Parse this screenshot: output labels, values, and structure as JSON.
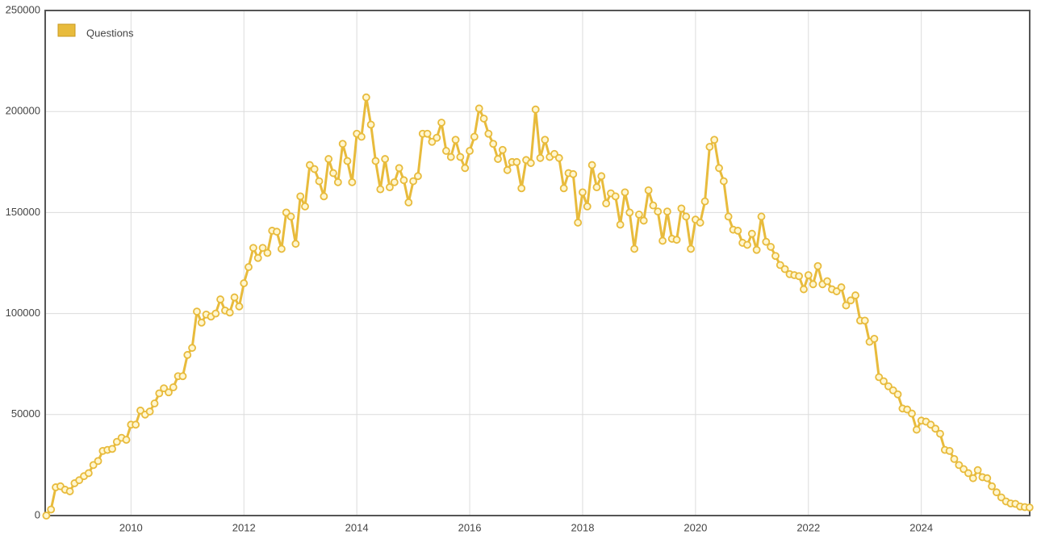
{
  "chart_data": {
    "type": "line",
    "x": [
      2008.5,
      2008.583,
      2008.667,
      2008.75,
      2008.833,
      2008.917,
      2009,
      2009.083,
      2009.167,
      2009.25,
      2009.333,
      2009.417,
      2009.5,
      2009.583,
      2009.667,
      2009.75,
      2009.833,
      2009.917,
      2010,
      2010.083,
      2010.167,
      2010.25,
      2010.333,
      2010.417,
      2010.5,
      2010.583,
      2010.667,
      2010.75,
      2010.833,
      2010.917,
      2011,
      2011.083,
      2011.167,
      2011.25,
      2011.333,
      2011.417,
      2011.5,
      2011.583,
      2011.667,
      2011.75,
      2011.833,
      2011.917,
      2012,
      2012.083,
      2012.167,
      2012.25,
      2012.333,
      2012.417,
      2012.5,
      2012.583,
      2012.667,
      2012.75,
      2012.833,
      2012.917,
      2013,
      2013.083,
      2013.167,
      2013.25,
      2013.333,
      2013.417,
      2013.5,
      2013.583,
      2013.667,
      2013.75,
      2013.833,
      2013.917,
      2014,
      2014.083,
      2014.167,
      2014.25,
      2014.333,
      2014.417,
      2014.5,
      2014.583,
      2014.667,
      2014.75,
      2014.833,
      2014.917,
      2015,
      2015.083,
      2015.167,
      2015.25,
      2015.333,
      2015.417,
      2015.5,
      2015.583,
      2015.667,
      2015.75,
      2015.833,
      2015.917,
      2016,
      2016.083,
      2016.167,
      2016.25,
      2016.333,
      2016.417,
      2016.5,
      2016.583,
      2016.667,
      2016.75,
      2016.833,
      2016.917,
      2017,
      2017.083,
      2017.167,
      2017.25,
      2017.333,
      2017.417,
      2017.5,
      2017.583,
      2017.667,
      2017.75,
      2017.833,
      2017.917,
      2018,
      2018.083,
      2018.167,
      2018.25,
      2018.333,
      2018.417,
      2018.5,
      2018.583,
      2018.667,
      2018.75,
      2018.833,
      2018.917,
      2019,
      2019.083,
      2019.167,
      2019.25,
      2019.333,
      2019.417,
      2019.5,
      2019.583,
      2019.667,
      2019.75,
      2019.833,
      2019.917,
      2020,
      2020.083,
      2020.167,
      2020.25,
      2020.333,
      2020.417,
      2020.5,
      2020.583,
      2020.667,
      2020.75,
      2020.833,
      2020.917,
      2021,
      2021.083,
      2021.167,
      2021.25,
      2021.333,
      2021.417,
      2021.5,
      2021.583,
      2021.667,
      2021.75,
      2021.833,
      2021.917,
      2022,
      2022.083,
      2022.167,
      2022.25,
      2022.333,
      2022.417,
      2022.5,
      2022.583,
      2022.667,
      2022.75,
      2022.833,
      2022.917,
      2023,
      2023.083,
      2023.167,
      2023.25,
      2023.333,
      2023.417,
      2023.5,
      2023.583,
      2023.667,
      2023.75,
      2023.833,
      2023.917,
      2024,
      2024.083,
      2024.167,
      2024.25,
      2024.333,
      2024.417,
      2024.5,
      2024.583,
      2024.667,
      2024.75,
      2024.833,
      2024.917,
      2025,
      2025.083,
      2025.167,
      2025.25,
      2025.333,
      2025.417,
      2025.5,
      2025.583,
      2025.667,
      2025.75,
      2025.833,
      2025.917
    ],
    "series": [
      {
        "name": "Questions",
        "color": "#e8bb3c",
        "values": [
          0,
          3000,
          14000,
          14500,
          12800,
          12000,
          16000,
          17500,
          19500,
          21000,
          25000,
          27000,
          32000,
          32500,
          33000,
          36500,
          38500,
          37500,
          45000,
          45000,
          52000,
          50000,
          51500,
          55500,
          60500,
          63000,
          61000,
          63500,
          69000,
          69000,
          79500,
          83000,
          101000,
          95500,
          99500,
          98500,
          100000,
          107000,
          101500,
          100500,
          108000,
          103500,
          115000,
          123000,
          132500,
          127500,
          132500,
          130000,
          141000,
          140500,
          132000,
          150000,
          148000,
          134500,
          158000,
          153000,
          173500,
          171500,
          165500,
          158000,
          176500,
          169500,
          165000,
          184000,
          175500,
          165000,
          189000,
          187500,
          207000,
          193500,
          175500,
          161500,
          176500,
          162500,
          165000,
          172000,
          166000,
          155000,
          165500,
          168000,
          189000,
          189000,
          185000,
          187000,
          194500,
          180500,
          177500,
          186000,
          177500,
          172000,
          180500,
          187500,
          201500,
          196500,
          189000,
          184000,
          176500,
          181000,
          171000,
          175000,
          175000,
          162000,
          176000,
          174500,
          201000,
          177000,
          186000,
          177500,
          179000,
          177000,
          162000,
          169500,
          169000,
          145000,
          160000,
          153000,
          173500,
          162500,
          168000,
          154500,
          159500,
          158000,
          144000,
          160000,
          150000,
          132000,
          149000,
          146000,
          161000,
          153500,
          150500,
          136000,
          150500,
          137000,
          136500,
          152000,
          148000,
          132000,
          146500,
          145000,
          155500,
          182500,
          186000,
          172000,
          165500,
          148000,
          141500,
          141000,
          135000,
          134000,
          139500,
          131500,
          148000,
          135500,
          133000,
          128500,
          124000,
          122000,
          119500,
          119000,
          118500,
          112000,
          119000,
          114500,
          123500,
          114500,
          116000,
          112000,
          111000,
          113000,
          104000,
          106500,
          109000,
          96500,
          96500,
          86000,
          87500,
          68500,
          66500,
          64000,
          62000,
          60000,
          53000,
          52500,
          50500,
          42500,
          47000,
          46500,
          45000,
          43000,
          40500,
          32500,
          32000,
          28000,
          25000,
          23000,
          21000,
          18500,
          22500,
          19000,
          18500,
          14500,
          11500,
          9000,
          7000,
          6000,
          5800,
          4500,
          4200,
          4000
        ]
      }
    ],
    "xlim": [
      2008.48,
      2025.92
    ],
    "xticks": [
      2010,
      2012,
      2014,
      2016,
      2018,
      2020,
      2022,
      2024
    ],
    "ylim": [
      0,
      250000
    ],
    "yticks": [
      0,
      50000,
      100000,
      150000,
      200000,
      250000
    ],
    "grid": true,
    "legend": "top-left"
  }
}
